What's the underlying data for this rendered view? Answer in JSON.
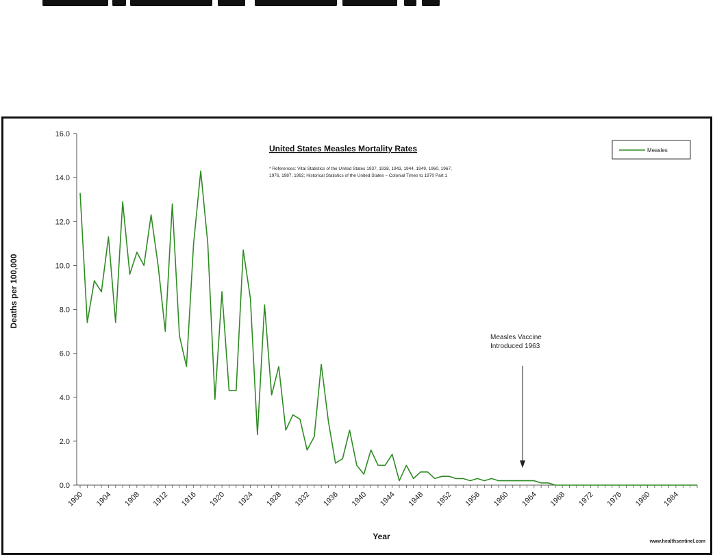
{
  "chart_data": {
    "type": "line",
    "title": "United States Measles Mortality Rates",
    "references": [
      "* References: Vital Statistics of the United States 1937, 1938, 1943, 1944, 1949, 1960, 1967,",
      "1976, 1987, 1992; Historical Statistics of the United States – Colonial Times to 1970 Part 1"
    ],
    "xlabel": "Year",
    "ylabel": "Deaths per 100,000",
    "ylim": [
      0,
      16
    ],
    "y_ticks": [
      "0.0",
      "2.0",
      "4.0",
      "6.0",
      "8.0",
      "10.0",
      "12.0",
      "14.0",
      "16.0"
    ],
    "x_ticks": [
      "1900",
      "1904",
      "1908",
      "1912",
      "1916",
      "1920",
      "1924",
      "1928",
      "1932",
      "1936",
      "1940",
      "1944",
      "1948",
      "1952",
      "1956",
      "1960",
      "1964",
      "1968",
      "1972",
      "1976",
      "1980",
      "1984"
    ],
    "x_range": [
      1900,
      1987
    ],
    "legend": {
      "position": "top-right",
      "entries": [
        "Measles"
      ]
    },
    "series": [
      {
        "name": "Measles",
        "color": "#2e8b22",
        "x": [
          1900,
          1901,
          1902,
          1903,
          1904,
          1905,
          1906,
          1907,
          1908,
          1909,
          1910,
          1911,
          1912,
          1913,
          1914,
          1915,
          1916,
          1917,
          1918,
          1919,
          1920,
          1921,
          1922,
          1923,
          1924,
          1925,
          1926,
          1927,
          1928,
          1929,
          1930,
          1931,
          1932,
          1933,
          1934,
          1935,
          1936,
          1937,
          1938,
          1939,
          1940,
          1941,
          1942,
          1943,
          1944,
          1945,
          1946,
          1947,
          1948,
          1949,
          1950,
          1951,
          1952,
          1953,
          1954,
          1955,
          1956,
          1957,
          1958,
          1959,
          1960,
          1961,
          1962,
          1963,
          1964,
          1965,
          1966,
          1967,
          1968,
          1969,
          1970,
          1971,
          1972,
          1973,
          1974,
          1975,
          1976,
          1977,
          1978,
          1979,
          1980,
          1981,
          1982,
          1983,
          1984,
          1985,
          1986,
          1987
        ],
        "values": [
          13.3,
          7.4,
          9.3,
          8.8,
          11.3,
          7.4,
          12.9,
          9.6,
          10.6,
          10.0,
          12.3,
          10.0,
          7.0,
          12.8,
          6.8,
          5.4,
          11.0,
          14.3,
          11.0,
          3.9,
          8.8,
          4.3,
          4.3,
          10.7,
          8.5,
          2.3,
          8.2,
          4.1,
          5.4,
          2.5,
          3.2,
          3.0,
          1.6,
          2.2,
          5.5,
          2.9,
          1.0,
          1.2,
          2.5,
          0.9,
          0.5,
          1.6,
          0.9,
          0.9,
          1.4,
          0.2,
          0.9,
          0.3,
          0.6,
          0.6,
          0.3,
          0.4,
          0.4,
          0.3,
          0.3,
          0.2,
          0.3,
          0.2,
          0.3,
          0.2,
          0.2,
          0.2,
          0.2,
          0.2,
          0.2,
          0.1,
          0.1,
          0.0,
          0.0,
          0.0,
          0.0,
          0.0,
          0.0,
          0.0,
          0.0,
          0.0,
          0.0,
          0.0,
          0.0,
          0.0,
          0.0,
          0.0,
          0.0,
          0.0,
          0.0,
          0.0,
          0.0,
          0.0
        ]
      }
    ],
    "annotations": [
      {
        "lines": [
          "Measles Vaccine",
          "Introduced 1963"
        ],
        "x": 1963,
        "y": 0.2
      }
    ],
    "source": "www.healthsentinel.com",
    "grid": false
  }
}
